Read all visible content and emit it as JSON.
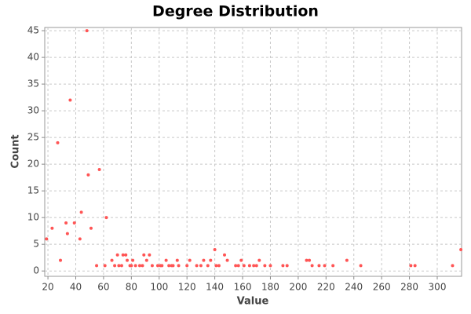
{
  "chart_data": {
    "type": "scatter",
    "title": "Degree Distribution",
    "x_label": "Value",
    "y_label": "Count",
    "color": "#ff5555",
    "grid": true,
    "xlim": [
      17.7,
      317.5
    ],
    "ylim": [
      -1,
      45.6
    ],
    "xticks": [
      20,
      40,
      60,
      80,
      100,
      120,
      140,
      160,
      180,
      200,
      220,
      240,
      260,
      280,
      300
    ],
    "yticks": [
      0,
      5,
      10,
      15,
      20,
      25,
      30,
      35,
      40,
      45
    ],
    "x": [
      19,
      23,
      27,
      29,
      33,
      34,
      36,
      39,
      43,
      44,
      48,
      49,
      51,
      55,
      57,
      61,
      62,
      66,
      68,
      70,
      71,
      73,
      74,
      76,
      77,
      79,
      80,
      81,
      83,
      86,
      88,
      89,
      91,
      93,
      95,
      99,
      101,
      102,
      105,
      107,
      109,
      110,
      113,
      114,
      120,
      122,
      127,
      130,
      132,
      135,
      137,
      140,
      141,
      143,
      147,
      149,
      155,
      157,
      159,
      161,
      165,
      168,
      170,
      172,
      176,
      180,
      189,
      192,
      206,
      208,
      210,
      215,
      219,
      225,
      235,
      245,
      281,
      284,
      311,
      317
    ],
    "values": [
      6,
      8,
      24,
      2,
      9,
      7,
      32,
      9,
      6,
      11,
      45,
      18,
      8,
      1,
      19,
      1,
      10,
      2,
      1,
      3,
      1,
      1,
      3,
      3,
      2,
      1,
      1,
      2,
      1,
      1,
      1,
      3,
      2,
      3,
      1,
      1,
      1,
      1,
      2,
      1,
      1,
      1,
      2,
      1,
      1,
      2,
      1,
      1,
      2,
      1,
      2,
      4,
      1,
      1,
      3,
      2,
      1,
      1,
      2,
      1,
      1,
      1,
      1,
      2,
      1,
      1,
      1,
      1,
      2,
      2,
      1,
      1,
      1,
      1,
      2,
      1,
      1,
      1,
      1,
      4
    ]
  }
}
